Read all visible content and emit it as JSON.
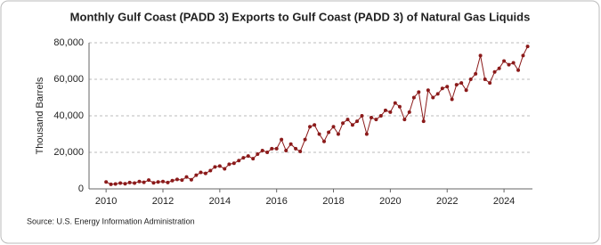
{
  "chart_data": {
    "type": "line",
    "title": "Monthly Gulf Coast (PADD 3) Exports to Gulf Coast (PADD 3) of Natural Gas Liquids",
    "y_label": "Thousand Barrels",
    "source": "Source: U.S. Energy Information Administration",
    "x": [
      2010,
      2010.17,
      2010.33,
      2010.5,
      2010.67,
      2010.83,
      2011,
      2011.17,
      2011.33,
      2011.5,
      2011.67,
      2011.83,
      2012,
      2012.17,
      2012.33,
      2012.5,
      2012.67,
      2012.83,
      2013,
      2013.17,
      2013.33,
      2013.5,
      2013.67,
      2013.83,
      2014,
      2014.17,
      2014.33,
      2014.5,
      2014.67,
      2014.83,
      2015,
      2015.17,
      2015.33,
      2015.5,
      2015.67,
      2015.83,
      2016,
      2016.17,
      2016.33,
      2016.5,
      2016.67,
      2016.83,
      2017,
      2017.17,
      2017.33,
      2017.5,
      2017.67,
      2017.83,
      2018,
      2018.17,
      2018.33,
      2018.5,
      2018.67,
      2018.83,
      2019,
      2019.17,
      2019.33,
      2019.5,
      2019.67,
      2019.83,
      2020,
      2020.17,
      2020.33,
      2020.5,
      2020.67,
      2020.83,
      2021,
      2021.17,
      2021.33,
      2021.5,
      2021.67,
      2021.83,
      2022,
      2022.17,
      2022.33,
      2022.5,
      2022.67,
      2022.83,
      2023,
      2023.17,
      2023.33,
      2023.5,
      2023.67,
      2023.83,
      2024,
      2024.17,
      2024.33,
      2024.5,
      2024.67,
      2024.83
    ],
    "series": [
      {
        "color": "#8b1a1a",
        "values": [
          3800,
          2500,
          2700,
          3200,
          2800,
          3500,
          3200,
          4000,
          3600,
          4800,
          3300,
          3800,
          4000,
          3500,
          4500,
          5200,
          4800,
          6500,
          5000,
          7500,
          9000,
          8500,
          10000,
          12000,
          12500,
          11000,
          13500,
          14000,
          15500,
          17000,
          18000,
          16500,
          19000,
          21000,
          20000,
          22000,
          22000,
          27000,
          21000,
          24500,
          22000,
          20500,
          27000,
          34000,
          35000,
          30000,
          26000,
          31000,
          34000,
          30000,
          36000,
          38000,
          35000,
          37000,
          40000,
          30000,
          39000,
          38000,
          40000,
          43000,
          42000,
          47000,
          45000,
          38000,
          42000,
          50000,
          53000,
          37000,
          54000,
          50000,
          52000,
          55000,
          56000,
          49000,
          57000,
          58000,
          54000,
          60000,
          63000,
          73000,
          60000,
          58000,
          64000,
          66000,
          70000,
          68000,
          69000,
          65000,
          73000,
          78000
        ]
      }
    ],
    "xlim": [
      2009.4,
      2025.0
    ],
    "xticks": [
      2010,
      2012,
      2014,
      2016,
      2018,
      2020,
      2022,
      2024
    ],
    "ylim": [
      0,
      80000
    ],
    "yticks": [
      0,
      {
        "value": 20000,
        "label": "20,000"
      },
      {
        "value": 40000,
        "label": "40,000"
      },
      {
        "value": 60000,
        "label": "60,000"
      },
      {
        "value": 80000,
        "label": "80,000"
      }
    ],
    "grid": true
  }
}
